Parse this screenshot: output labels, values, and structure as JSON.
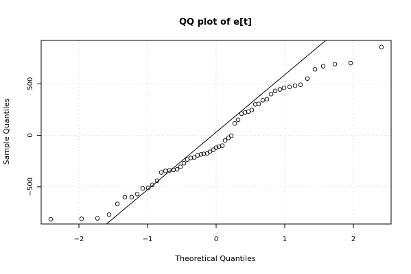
{
  "chart_data": {
    "type": "scatter",
    "title": "QQ plot of e[t]",
    "xlabel": "Theoretical Quantiles",
    "ylabel": "Sample Quantiles",
    "xlim": [
      -2.55,
      2.55
    ],
    "ylim": [
      -860,
      920
    ],
    "x_ticks": [
      -2,
      -1,
      0,
      1,
      2
    ],
    "x_tick_labels": [
      "−2",
      "−1",
      "0",
      "1",
      "2"
    ],
    "y_ticks": [
      -500,
      0,
      500
    ],
    "y_tick_labels": [
      "−500",
      "0",
      "500"
    ],
    "grid": true,
    "colors": {
      "points": "#000000",
      "line": "#000000",
      "grid": "#d3d3d3"
    },
    "reference_line": {
      "intercept": 30,
      "slope": 557
    },
    "points": [
      {
        "x": -2.41,
        "y": -815
      },
      {
        "x": -1.96,
        "y": -810
      },
      {
        "x": -1.73,
        "y": -805
      },
      {
        "x": -1.56,
        "y": -770
      },
      {
        "x": -1.44,
        "y": -665
      },
      {
        "x": -1.33,
        "y": -600
      },
      {
        "x": -1.23,
        "y": -600
      },
      {
        "x": -1.15,
        "y": -570
      },
      {
        "x": -1.07,
        "y": -515
      },
      {
        "x": -0.99,
        "y": -510
      },
      {
        "x": -0.93,
        "y": -480
      },
      {
        "x": -0.86,
        "y": -440
      },
      {
        "x": -0.8,
        "y": -360
      },
      {
        "x": -0.74,
        "y": -345
      },
      {
        "x": -0.68,
        "y": -340
      },
      {
        "x": -0.62,
        "y": -335
      },
      {
        "x": -0.57,
        "y": -330
      },
      {
        "x": -0.52,
        "y": -305
      },
      {
        "x": -0.47,
        "y": -270
      },
      {
        "x": -0.42,
        "y": -235
      },
      {
        "x": -0.37,
        "y": -220
      },
      {
        "x": -0.32,
        "y": -215
      },
      {
        "x": -0.27,
        "y": -195
      },
      {
        "x": -0.22,
        "y": -185
      },
      {
        "x": -0.18,
        "y": -180
      },
      {
        "x": -0.13,
        "y": -175
      },
      {
        "x": -0.09,
        "y": -160
      },
      {
        "x": -0.04,
        "y": -140
      },
      {
        "x": 0.0,
        "y": -120
      },
      {
        "x": 0.04,
        "y": -110
      },
      {
        "x": 0.09,
        "y": -100
      },
      {
        "x": 0.13,
        "y": -50
      },
      {
        "x": 0.18,
        "y": -25
      },
      {
        "x": 0.22,
        "y": -5
      },
      {
        "x": 0.27,
        "y": 115
      },
      {
        "x": 0.32,
        "y": 150
      },
      {
        "x": 0.37,
        "y": 210
      },
      {
        "x": 0.42,
        "y": 220
      },
      {
        "x": 0.47,
        "y": 230
      },
      {
        "x": 0.52,
        "y": 245
      },
      {
        "x": 0.57,
        "y": 300
      },
      {
        "x": 0.62,
        "y": 305
      },
      {
        "x": 0.68,
        "y": 340
      },
      {
        "x": 0.74,
        "y": 350
      },
      {
        "x": 0.8,
        "y": 400
      },
      {
        "x": 0.86,
        "y": 430
      },
      {
        "x": 0.93,
        "y": 445
      },
      {
        "x": 0.99,
        "y": 460
      },
      {
        "x": 1.07,
        "y": 470
      },
      {
        "x": 1.15,
        "y": 480
      },
      {
        "x": 1.23,
        "y": 490
      },
      {
        "x": 1.33,
        "y": 550
      },
      {
        "x": 1.44,
        "y": 640
      },
      {
        "x": 1.56,
        "y": 670
      },
      {
        "x": 1.73,
        "y": 690
      },
      {
        "x": 1.96,
        "y": 700
      },
      {
        "x": 2.41,
        "y": 855
      }
    ]
  }
}
